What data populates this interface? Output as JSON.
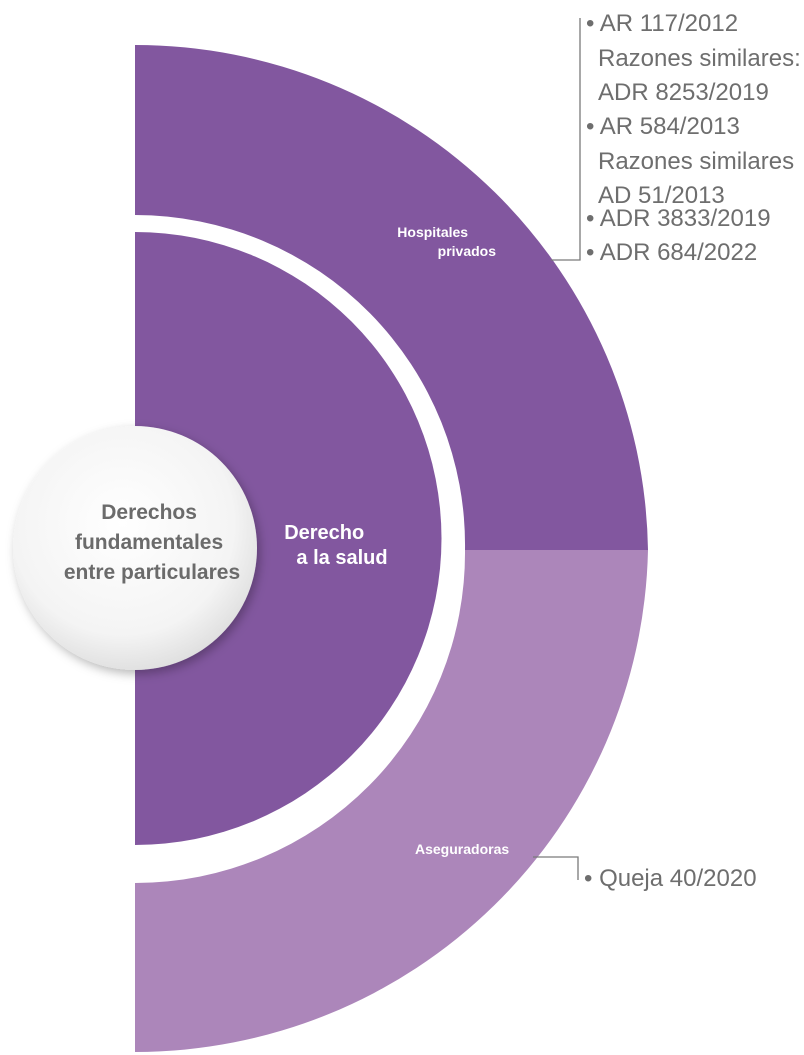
{
  "colors": {
    "dark_purple": "#82579f",
    "light_purple": "#ac86ba",
    "connector": "#7a7a7a",
    "text_gray": "#6e6e6e"
  },
  "center": {
    "lines": [
      "Derechos",
      "fundamentales",
      "entre particulares"
    ]
  },
  "inner": {
    "lines": [
      "Derecho",
      "a la salud"
    ]
  },
  "segments": [
    {
      "lines": [
        "Hospitales",
        "privados"
      ],
      "cases": [
        {
          "bullet": true,
          "text": "AR 117/2012"
        },
        {
          "bullet": false,
          "text": "Razones similares:"
        },
        {
          "bullet": false,
          "text": "ADR 8253/2019"
        },
        {
          "bullet": true,
          "text": "AR 584/2013"
        },
        {
          "bullet": false,
          "text": "Razones similares"
        },
        {
          "bullet": false,
          "text": "AD 51/2013"
        },
        {
          "bullet": true,
          "text": "ADR 3833/2019"
        },
        {
          "bullet": true,
          "text": "ADR 684/2022"
        }
      ]
    },
    {
      "lines": [
        "Aseguradoras"
      ],
      "cases": [
        {
          "bullet": true,
          "text": "Queja 40/2020"
        }
      ]
    }
  ],
  "bullet_char": "•"
}
